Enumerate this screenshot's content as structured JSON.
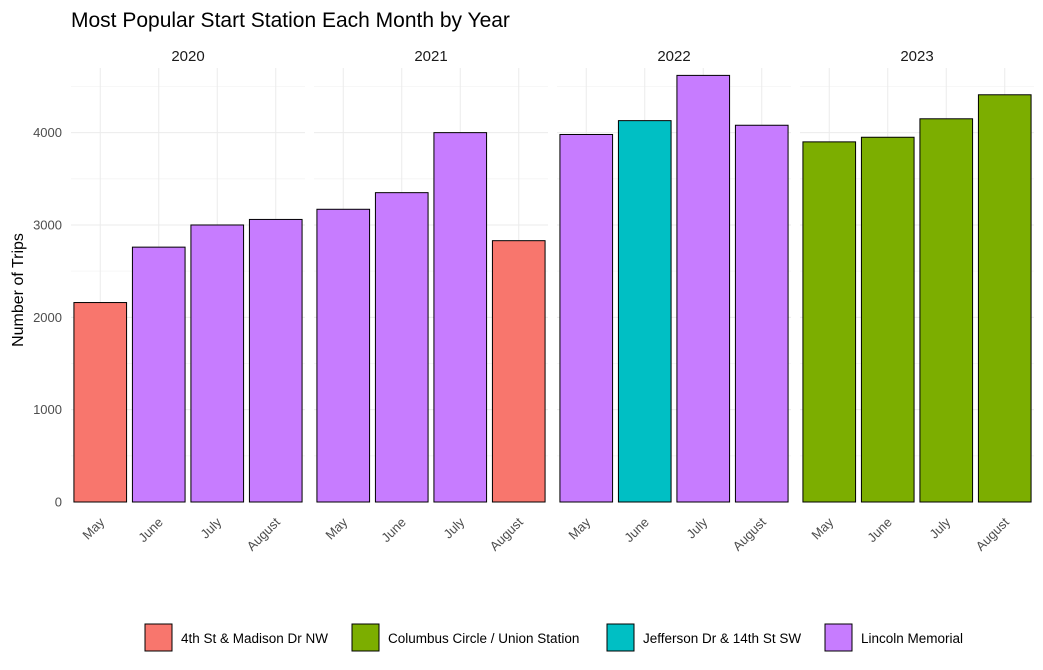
{
  "chart_data": {
    "type": "bar",
    "title": "Most Popular Start Station Each Month by Year",
    "xlabel": "",
    "ylabel": "Number of Trips",
    "ylim": [
      0,
      4700
    ],
    "y_ticks": [
      0,
      1000,
      2000,
      3000,
      4000
    ],
    "grid": true,
    "legend_position": "bottom",
    "categories": [
      "May",
      "June",
      "July",
      "August"
    ],
    "stations": [
      {
        "name": "4th St & Madison Dr NW",
        "color": "#F8766D"
      },
      {
        "name": "Columbus Circle / Union Station",
        "color": "#7CAE00"
      },
      {
        "name": "Jefferson Dr & 14th St SW",
        "color": "#00BFC4"
      },
      {
        "name": "Lincoln Memorial",
        "color": "#C77CFF"
      }
    ],
    "facets": [
      {
        "year": "2020",
        "bars": [
          {
            "month": "May",
            "value": 2160,
            "station": "4th St & Madison Dr NW"
          },
          {
            "month": "June",
            "value": 2760,
            "station": "Lincoln Memorial"
          },
          {
            "month": "July",
            "value": 3000,
            "station": "Lincoln Memorial"
          },
          {
            "month": "August",
            "value": 3060,
            "station": "Lincoln Memorial"
          }
        ]
      },
      {
        "year": "2021",
        "bars": [
          {
            "month": "May",
            "value": 3170,
            "station": "Lincoln Memorial"
          },
          {
            "month": "June",
            "value": 3350,
            "station": "Lincoln Memorial"
          },
          {
            "month": "July",
            "value": 4000,
            "station": "Lincoln Memorial"
          },
          {
            "month": "August",
            "value": 2830,
            "station": "4th St & Madison Dr NW"
          }
        ]
      },
      {
        "year": "2022",
        "bars": [
          {
            "month": "May",
            "value": 3980,
            "station": "Lincoln Memorial"
          },
          {
            "month": "June",
            "value": 4130,
            "station": "Jefferson Dr & 14th St SW"
          },
          {
            "month": "July",
            "value": 4620,
            "station": "Lincoln Memorial"
          },
          {
            "month": "August",
            "value": 4080,
            "station": "Lincoln Memorial"
          }
        ]
      },
      {
        "year": "2023",
        "bars": [
          {
            "month": "May",
            "value": 3900,
            "station": "Columbus Circle / Union Station"
          },
          {
            "month": "June",
            "value": 3950,
            "station": "Columbus Circle / Union Station"
          },
          {
            "month": "July",
            "value": 4150,
            "station": "Columbus Circle / Union Station"
          },
          {
            "month": "August",
            "value": 4410,
            "station": "Columbus Circle / Union Station"
          }
        ]
      }
    ]
  }
}
